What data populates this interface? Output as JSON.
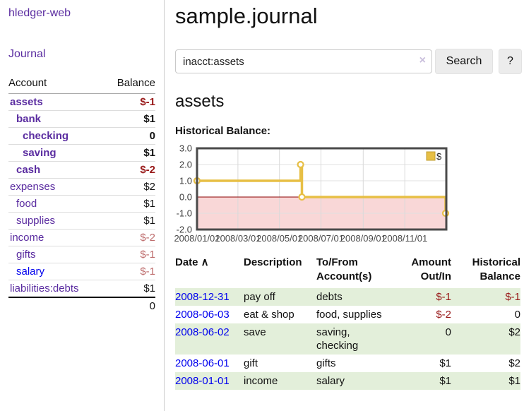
{
  "app": {
    "title": "hledger-web"
  },
  "colors": {
    "link_purple": "#5a2ca0",
    "link_blue": "#0000ee",
    "negative_strong": "#981818",
    "negative_soft": "#bd6b6b",
    "row_stripe_green": "#e3efda",
    "chart_series_gold": "#e7bf45",
    "chart_negative_region": "#f9d7d7",
    "chart_zero_line": "#8b0000"
  },
  "sidebar": {
    "journal_label": "Journal",
    "accounts_table": {
      "headers": {
        "account": "Account",
        "balance": "Balance"
      },
      "rows": [
        {
          "name": "assets",
          "balance": "$-1",
          "indent": 0,
          "current": true,
          "negative": "strong",
          "link_style": "purple"
        },
        {
          "name": "bank",
          "balance": "$1",
          "indent": 1,
          "current": true,
          "negative": "none",
          "link_style": "purple"
        },
        {
          "name": "checking",
          "balance": "0",
          "indent": 2,
          "current": true,
          "negative": "none",
          "link_style": "purple"
        },
        {
          "name": "saving",
          "balance": "$1",
          "indent": 2,
          "current": true,
          "negative": "none",
          "link_style": "purple"
        },
        {
          "name": "cash",
          "balance": "$-2",
          "indent": 1,
          "current": true,
          "negative": "strong",
          "link_style": "purple"
        },
        {
          "name": "expenses",
          "balance": "$2",
          "indent": 0,
          "current": false,
          "negative": "none",
          "link_style": "purple"
        },
        {
          "name": "food",
          "balance": "$1",
          "indent": 1,
          "current": false,
          "negative": "none",
          "link_style": "purple"
        },
        {
          "name": "supplies",
          "balance": "$1",
          "indent": 1,
          "current": false,
          "negative": "none",
          "link_style": "purple"
        },
        {
          "name": "income",
          "balance": "$-2",
          "indent": 0,
          "current": false,
          "negative": "soft",
          "link_style": "purple"
        },
        {
          "name": "gifts",
          "balance": "$-1",
          "indent": 1,
          "current": false,
          "negative": "soft",
          "link_style": "purple"
        },
        {
          "name": "salary",
          "balance": "$-1",
          "indent": 1,
          "current": false,
          "negative": "soft",
          "link_style": "blue"
        },
        {
          "name": "liabilities:debts",
          "balance": "$1",
          "indent": 0,
          "current": false,
          "negative": "none",
          "link_style": "purple"
        }
      ],
      "total": "0"
    }
  },
  "main": {
    "title": "sample.journal",
    "search": {
      "value": "inacct:assets",
      "clear_icon": "×",
      "button_label": "Search",
      "help_label": "?"
    },
    "account_heading": "assets",
    "section_label": "Historical Balance:",
    "register_table": {
      "headers": [
        {
          "id": "date",
          "lines": [
            "Date"
          ],
          "align": "left",
          "sort_icon": "∧"
        },
        {
          "id": "description",
          "lines": [
            "Description"
          ],
          "align": "left"
        },
        {
          "id": "accounts",
          "lines": [
            "To/From",
            "Account(s)"
          ],
          "align": "left"
        },
        {
          "id": "amount",
          "lines": [
            "Amount",
            "Out/In"
          ],
          "align": "right"
        },
        {
          "id": "balance",
          "lines": [
            "Historical",
            "Balance"
          ],
          "align": "right"
        }
      ],
      "rows": [
        {
          "date": "2008-12-31",
          "description": "pay off",
          "accounts": [
            "debts"
          ],
          "amount": "$-1",
          "amount_negative": true,
          "balance": "$-1",
          "balance_negative": true
        },
        {
          "date": "2008-06-03",
          "description": "eat & shop",
          "accounts": [
            "food, supplies"
          ],
          "amount": "$-2",
          "amount_negative": true,
          "balance": "0",
          "balance_negative": false
        },
        {
          "date": "2008-06-02",
          "description": "save",
          "accounts": [
            "saving,",
            "checking"
          ],
          "amount": "0",
          "amount_negative": false,
          "balance": "$2",
          "balance_negative": false
        },
        {
          "date": "2008-06-01",
          "description": "gift",
          "accounts": [
            "gifts"
          ],
          "amount": "$1",
          "amount_negative": false,
          "balance": "$2",
          "balance_negative": false
        },
        {
          "date": "2008-01-01",
          "description": "income",
          "accounts": [
            "salary"
          ],
          "amount": "$1",
          "amount_negative": false,
          "balance": "$1",
          "balance_negative": false
        }
      ]
    }
  },
  "chart_data": {
    "type": "line",
    "title": "Historical Balance:",
    "start_date": "2008-01-01",
    "xlim_days": [
      0,
      366
    ],
    "ylim": [
      -2,
      3
    ],
    "yticks": [
      3.0,
      2.0,
      1.0,
      0.0,
      -1.0,
      -2.0
    ],
    "xticks": [
      "2008/01/01",
      "2008/03/01",
      "2008/05/01",
      "2008/07/01",
      "2008/09/01",
      "2008/11/01"
    ],
    "grid": true,
    "legend_position": "top-right",
    "zero_line_color": "#8b0000",
    "negative_region_color": "#f9d7d7",
    "series": [
      {
        "name": "$",
        "color": "#e7bf45",
        "step": true,
        "points": [
          {
            "date": "2008-01-01",
            "value": 1
          },
          {
            "date": "2008-06-01",
            "value": 2
          },
          {
            "date": "2008-06-03",
            "value": 0
          },
          {
            "date": "2008-12-31",
            "value": -1
          }
        ]
      }
    ]
  }
}
